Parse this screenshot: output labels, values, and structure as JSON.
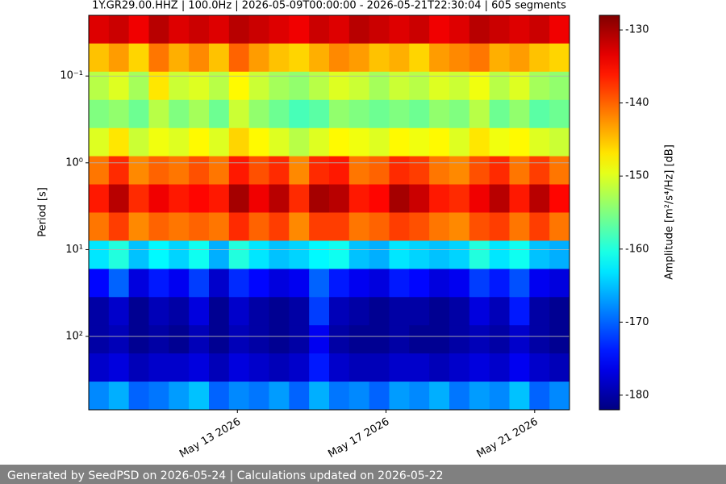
{
  "chart_data": {
    "type": "heatmap",
    "title": "1Y.GR29.00.HHZ | 100.0Hz | 2026-05-09T00:00:00 - 2026-05-21T22:30:04 | 605 segments",
    "ylabel": "Period [s]",
    "colorbar_label": "Amplitude [m²/s⁴/Hz] [dB]",
    "colormap": "jet",
    "xlim": [
      "2026-05-09T00:00:00",
      "2026-05-21T22:30:04"
    ],
    "xticks": [
      {
        "value": "2026-05-13",
        "label": "May 13 2026"
      },
      {
        "value": "2026-05-17",
        "label": "May 17 2026"
      },
      {
        "value": "2026-05-21",
        "label": "May 21 2026"
      }
    ],
    "ylim": [
      0.02,
      700
    ],
    "ylog": true,
    "yinverted": true,
    "yticks": [
      {
        "value": 0.1,
        "label": "10⁻¹"
      },
      {
        "value": 1,
        "label": "10⁰"
      },
      {
        "value": 10,
        "label": "10¹"
      },
      {
        "value": 100,
        "label": "10²"
      }
    ],
    "grid": true,
    "clim": [
      -182,
      -128
    ],
    "cticks": [
      -130,
      -140,
      -150,
      -160,
      -170,
      -180
    ],
    "z": [
      [
        -133,
        -132,
        -134,
        -131,
        -133,
        -132,
        -133,
        -131,
        -132,
        -133,
        -134,
        -132,
        -133,
        -131,
        -132,
        -133,
        -132,
        -134,
        -133,
        -131,
        -132,
        -133,
        -132,
        -134
      ],
      [
        -145,
        -143,
        -146,
        -141,
        -144,
        -142,
        -145,
        -140,
        -143,
        -145,
        -146,
        -144,
        -142,
        -143,
        -145,
        -144,
        -146,
        -143,
        -142,
        -141,
        -144,
        -143,
        -145,
        -146
      ],
      [
        -152,
        -150,
        -153,
        -147,
        -151,
        -150,
        -152,
        -148,
        -151,
        -153,
        -154,
        -152,
        -150,
        -151,
        -153,
        -151,
        -152,
        -150,
        -151,
        -149,
        -152,
        -150,
        -153,
        -154
      ],
      [
        -155,
        -154,
        -156,
        -152,
        -155,
        -153,
        -156,
        -151,
        -154,
        -156,
        -158,
        -157,
        -154,
        -155,
        -156,
        -155,
        -156,
        -154,
        -155,
        -152,
        -156,
        -154,
        -157,
        -156
      ],
      [
        -150,
        -147,
        -151,
        -149,
        -150,
        -148,
        -150,
        -146,
        -148,
        -150,
        -152,
        -150,
        -148,
        -149,
        -150,
        -148,
        -149,
        -148,
        -150,
        -147,
        -149,
        -148,
        -150,
        -151
      ],
      [
        -141,
        -137,
        -142,
        -140,
        -141,
        -139,
        -141,
        -136,
        -139,
        -137,
        -142,
        -137,
        -136,
        -141,
        -140,
        -137,
        -138,
        -141,
        -142,
        -139,
        -137,
        -141,
        -138,
        -141
      ],
      [
        -136,
        -131,
        -137,
        -134,
        -136,
        -135,
        -136,
        -130,
        -134,
        -131,
        -137,
        -130,
        -131,
        -136,
        -135,
        -130,
        -132,
        -136,
        -137,
        -134,
        -131,
        -136,
        -131,
        -135
      ],
      [
        -141,
        -138,
        -142,
        -140,
        -141,
        -140,
        -141,
        -137,
        -140,
        -138,
        -142,
        -138,
        -138,
        -141,
        -140,
        -138,
        -139,
        -141,
        -142,
        -139,
        -138,
        -141,
        -138,
        -141
      ],
      [
        -163,
        -160,
        -165,
        -162,
        -164,
        -161,
        -166,
        -160,
        -163,
        -165,
        -164,
        -162,
        -161,
        -165,
        -166,
        -163,
        -164,
        -165,
        -164,
        -160,
        -163,
        -161,
        -165,
        -166
      ],
      [
        -175,
        -170,
        -177,
        -174,
        -176,
        -172,
        -178,
        -173,
        -175,
        -177,
        -176,
        -170,
        -174,
        -176,
        -177,
        -174,
        -175,
        -177,
        -176,
        -172,
        -174,
        -171,
        -176,
        -177
      ],
      [
        -180,
        -178,
        -181,
        -179,
        -180,
        -177,
        -181,
        -178,
        -180,
        -181,
        -180,
        -172,
        -179,
        -180,
        -181,
        -180,
        -180,
        -181,
        -180,
        -177,
        -179,
        -174,
        -180,
        -181
      ],
      [
        -180,
        -179,
        -181,
        -180,
        -181,
        -179,
        -181,
        -179,
        -180,
        -181,
        -180,
        -176,
        -180,
        -181,
        -181,
        -180,
        -181,
        -181,
        -180,
        -179,
        -180,
        -178,
        -180,
        -181
      ],
      [
        -178,
        -177,
        -179,
        -178,
        -178,
        -177,
        -179,
        -177,
        -178,
        -179,
        -178,
        -174,
        -178,
        -179,
        -179,
        -178,
        -178,
        -179,
        -178,
        -177,
        -178,
        -176,
        -178,
        -179
      ],
      [
        -168,
        -166,
        -170,
        -169,
        -167,
        -165,
        -170,
        -168,
        -169,
        -167,
        -170,
        -166,
        -169,
        -168,
        -170,
        -167,
        -168,
        -166,
        -169,
        -167,
        -168,
        -165,
        -170,
        -168
      ]
    ]
  },
  "footer": "Generated by SeedPSD on 2026-05-24 | Calculations updated on 2026-05-22"
}
